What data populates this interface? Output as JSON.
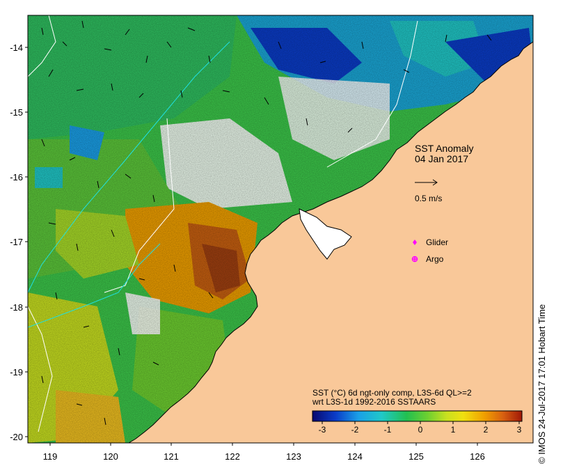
{
  "map": {
    "title": "SST Anomaly",
    "date": "04 Jan 2017",
    "current_vector_scale": "0.5 m/s",
    "colorbar_title_line1": "SST (°C) 6d ngt-only comp, L3S-6d QL>=2",
    "colorbar_title_line2": "wrt L3S-1d 1992-2016 SSTAARS",
    "lon_ticks": [
      "119",
      "120",
      "121",
      "122",
      "123",
      "124",
      "125",
      "126"
    ],
    "lat_ticks": [
      "-14",
      "-15",
      "-16",
      "-17",
      "-18",
      "-19",
      "-20"
    ],
    "colorbar_ticks": [
      "-3",
      "-2",
      "-1",
      "0",
      "1",
      "2",
      "3"
    ],
    "legend": [
      {
        "label": "Glider",
        "color": "#ff00ff",
        "marker": "diamond"
      },
      {
        "label": "Argo",
        "color": "#ff00ff",
        "marker": "circle-cross"
      }
    ],
    "credit": "© IMOS 24-Jul-2017 17:01 Hobart Time",
    "colors": {
      "land": "#f9c899",
      "no_data": "#ffffff",
      "anomaly_scale": [
        "#08086e",
        "#0a3cc8",
        "#1aa0e8",
        "#20c8c8",
        "#22c050",
        "#a8dc28",
        "#f0e010",
        "#f0a000",
        "#d86010",
        "#a01808"
      ]
    }
  }
}
